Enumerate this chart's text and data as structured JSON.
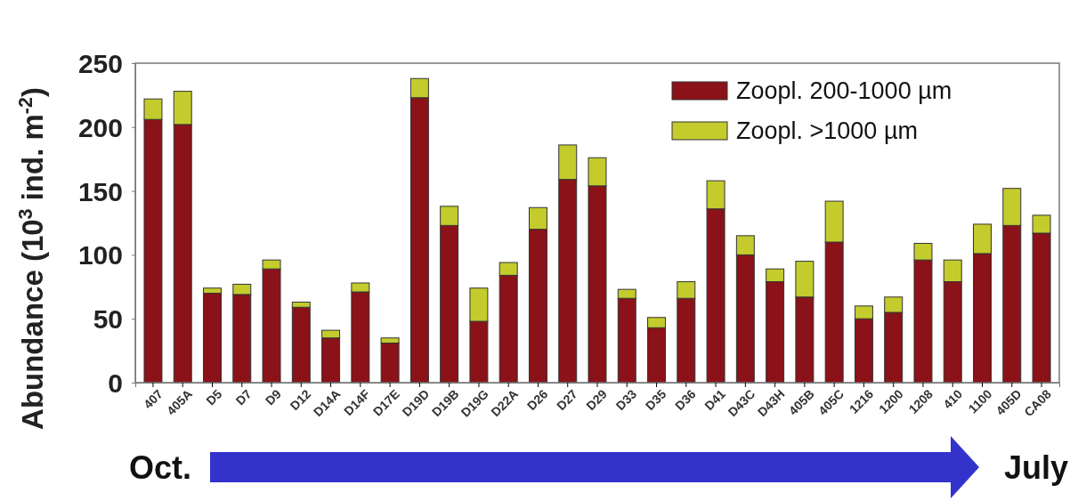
{
  "chart_data": {
    "type": "bar",
    "stacked": true,
    "ylabel": "Abundance (10$^{3}$ ind. m$^{-2}$)",
    "categories": [
      "407",
      "405A",
      "D5",
      "D7",
      "D9",
      "D12",
      "D14A",
      "D14F",
      "D17E",
      "D19D",
      "D19B",
      "D19G",
      "D22A",
      "D26",
      "D27",
      "D29",
      "D33",
      "D35",
      "D36",
      "D41",
      "D43C",
      "D43H",
      "405B",
      "405C",
      "1216",
      "1200",
      "1208",
      "410",
      "1100",
      "405D",
      "CA08"
    ],
    "series": [
      {
        "name": "Zoopl. 200-1000 µm",
        "color": "#8b1218",
        "values": [
          206,
          202,
          70,
          69,
          89,
          59,
          35,
          71,
          31,
          223,
          123,
          48,
          84,
          120,
          159,
          154,
          66,
          43,
          66,
          136,
          100,
          79,
          67,
          110,
          50,
          55,
          96,
          79,
          101,
          123,
          117
        ]
      },
      {
        "name": "Zoopl. >1000 µm",
        "color": "#c3cc2c",
        "values": [
          16,
          26,
          4,
          8,
          7,
          4,
          6,
          7,
          4,
          15,
          15,
          26,
          10,
          17,
          27,
          22,
          7,
          8,
          13,
          22,
          15,
          10,
          28,
          32,
          10,
          12,
          13,
          17,
          23,
          29,
          14
        ]
      }
    ],
    "ylim": [
      0,
      250
    ],
    "yticks": [
      0,
      50,
      100,
      150,
      200,
      250
    ],
    "grid": false,
    "legend": "top right",
    "annotations": [
      "Oct.",
      "July"
    ]
  }
}
